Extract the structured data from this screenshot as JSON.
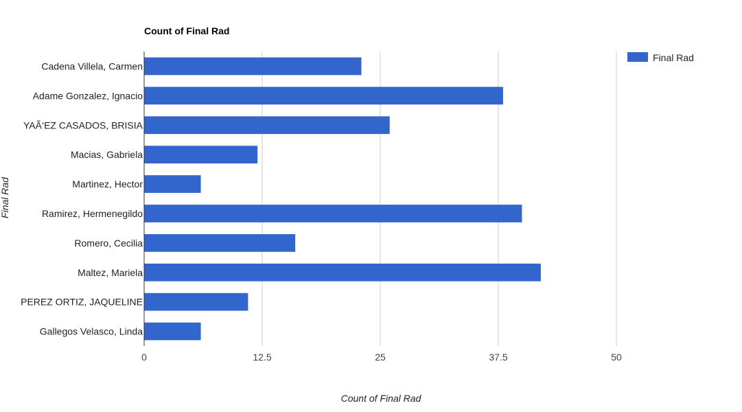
{
  "chart_data": {
    "type": "bar",
    "orientation": "horizontal",
    "title": "Count of Final Rad",
    "xlabel": "Count of Final Rad",
    "ylabel": "Final Rad",
    "xlim": [
      0,
      50
    ],
    "x_ticks": [
      "0",
      "12.5",
      "25",
      "37.5",
      "50"
    ],
    "x_tick_values": [
      0,
      12.5,
      25,
      37.5,
      50
    ],
    "grid": true,
    "legend_position": "top-right",
    "categories": [
      "Cadena Villela, Carmen",
      "Adame Gonzalez, Ignacio",
      "YAÃ‘EZ CASADOS, BRISIA",
      "Macias, Gabriela",
      "Martinez, Hector",
      "Ramirez, Hermenegildo",
      "Romero, Cecilia",
      "Maltez, Mariela",
      "PEREZ ORTIZ, JAQUELINE",
      "Gallegos Velasco, Linda"
    ],
    "series": [
      {
        "name": "Final Rad",
        "color": "#3366cc",
        "values": [
          23,
          38,
          26,
          12,
          6,
          40,
          16,
          42,
          11,
          6
        ]
      }
    ]
  }
}
